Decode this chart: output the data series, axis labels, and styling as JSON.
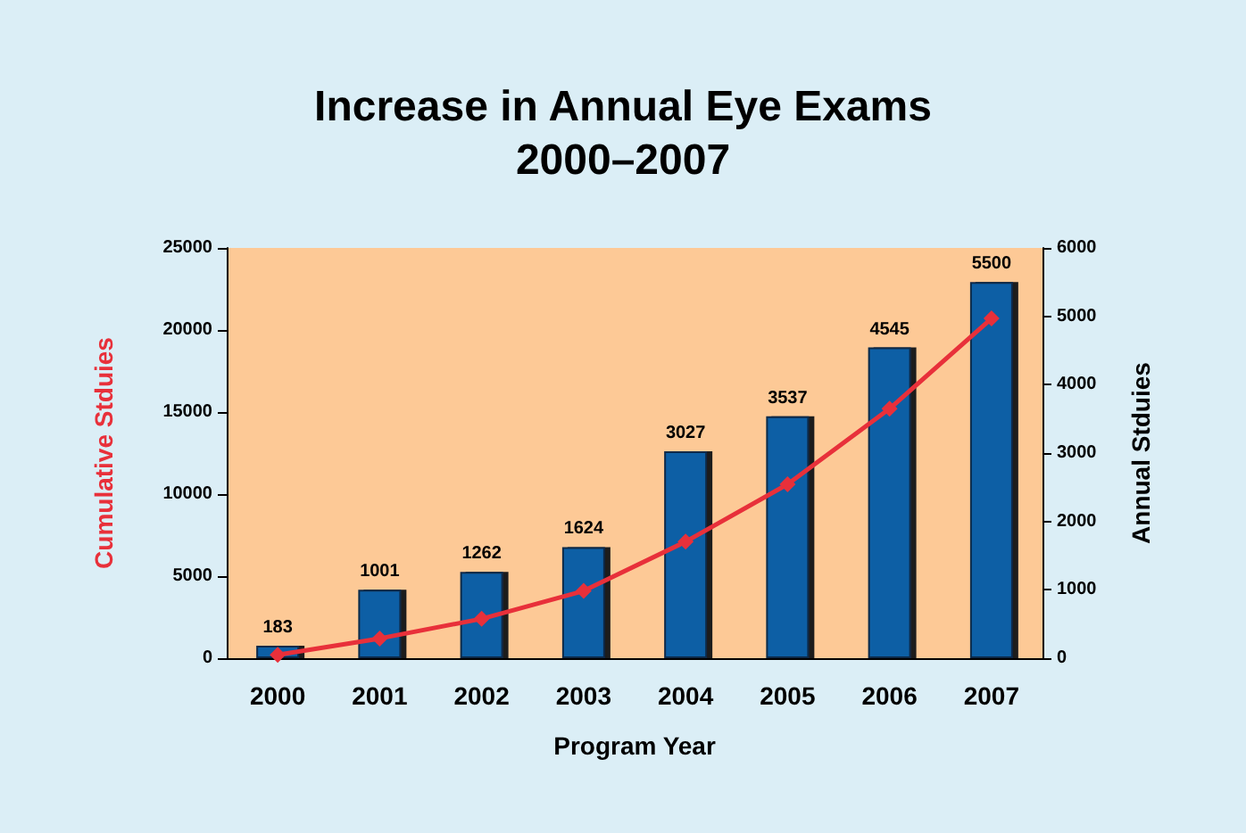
{
  "chart_data": {
    "type": "bar",
    "title": "Increase in Annual Eye Exams\n2000–2007",
    "xlabel": "Program Year",
    "ylabel": "Cumulative Stduies",
    "y2label": "Annual Stduies",
    "categories": [
      "2000",
      "2001",
      "2002",
      "2003",
      "2004",
      "2005",
      "2006",
      "2007"
    ],
    "series": [
      {
        "axis": "y2",
        "color": "#0b5fa5",
        "values": [
          183,
          1001,
          1262,
          1624,
          3027,
          3537,
          4545,
          5500
        ],
        "value_labels": [
          "183",
          "1001",
          "1262",
          "1624",
          "3027",
          "3537",
          "4545",
          "5500"
        ]
      },
      {
        "type": "line",
        "color": "#e8303a",
        "marker": "diamond",
        "values": [
          200,
          1200,
          2400,
          4100,
          7100,
          10600,
          15200,
          20700
        ]
      }
    ],
    "ylim": [
      0,
      25000
    ],
    "yticks": [
      0,
      5000,
      10000,
      15000,
      20000,
      25000
    ],
    "y2lim": [
      0,
      6000
    ],
    "y2ticks": [
      0,
      1000,
      2000,
      3000,
      4000,
      5000,
      6000
    ],
    "grid": false
  }
}
